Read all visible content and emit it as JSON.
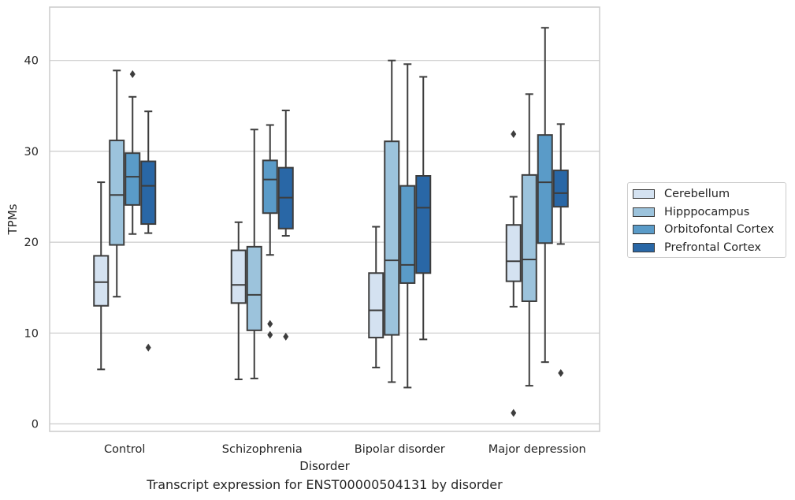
{
  "chart_data": {
    "type": "box",
    "caption": "Transcript expression for ENST00000504131 by disorder",
    "xlabel": "Disorder",
    "ylabel": "TPMs",
    "ylim": [
      -0.8,
      46
    ],
    "yticks": [
      0,
      10,
      20,
      30,
      40
    ],
    "grid": "horizontal",
    "legend_position": "right",
    "categories": [
      "Control",
      "Schizophrenia",
      "Bipolar disorder",
      "Major depression"
    ],
    "series": [
      {
        "name": "Cerebellum",
        "color": "#d4e2f1",
        "boxes": [
          {
            "whisker_low": 6.0,
            "q1": 13.0,
            "median": 15.6,
            "q3": 18.5,
            "whisker_high": 26.6,
            "outliers": []
          },
          {
            "whisker_low": 4.9,
            "q1": 13.3,
            "median": 15.3,
            "q3": 19.1,
            "whisker_high": 22.2,
            "outliers": []
          },
          {
            "whisker_low": 6.2,
            "q1": 9.5,
            "median": 12.5,
            "q3": 16.6,
            "whisker_high": 21.7,
            "outliers": []
          },
          {
            "whisker_low": 12.9,
            "q1": 15.7,
            "median": 17.9,
            "q3": 21.9,
            "whisker_high": 25.0,
            "outliers": [
              31.9,
              1.2
            ]
          }
        ]
      },
      {
        "name": "Hipppocampus",
        "color": "#9cc3dc",
        "boxes": [
          {
            "whisker_low": 14.0,
            "q1": 19.7,
            "median": 25.2,
            "q3": 31.2,
            "whisker_high": 38.9,
            "outliers": []
          },
          {
            "whisker_low": 5.0,
            "q1": 10.3,
            "median": 14.2,
            "q3": 19.5,
            "whisker_high": 32.4,
            "outliers": []
          },
          {
            "whisker_low": 4.6,
            "q1": 9.8,
            "median": 18.0,
            "q3": 31.1,
            "whisker_high": 40.0,
            "outliers": []
          },
          {
            "whisker_low": 4.2,
            "q1": 13.5,
            "median": 18.1,
            "q3": 27.4,
            "whisker_high": 36.3,
            "outliers": []
          }
        ]
      },
      {
        "name": "Orbitofontal Cortex",
        "color": "#5a9bc8",
        "boxes": [
          {
            "whisker_low": 20.9,
            "q1": 24.1,
            "median": 27.2,
            "q3": 29.8,
            "whisker_high": 36.0,
            "outliers": [
              38.5
            ]
          },
          {
            "whisker_low": 18.6,
            "q1": 23.2,
            "median": 26.9,
            "q3": 29.0,
            "whisker_high": 32.9,
            "outliers": [
              11.0,
              9.8
            ]
          },
          {
            "whisker_low": 4.0,
            "q1": 15.5,
            "median": 17.5,
            "q3": 26.2,
            "whisker_high": 39.6,
            "outliers": []
          },
          {
            "whisker_low": 6.8,
            "q1": 19.9,
            "median": 26.6,
            "q3": 31.8,
            "whisker_high": 43.6,
            "outliers": []
          }
        ]
      },
      {
        "name": "Prefrontal Cortex",
        "color": "#2967a6",
        "boxes": [
          {
            "whisker_low": 21.0,
            "q1": 22.0,
            "median": 26.2,
            "q3": 28.9,
            "whisker_high": 34.4,
            "outliers": [
              8.4
            ]
          },
          {
            "whisker_low": 20.7,
            "q1": 21.5,
            "median": 24.9,
            "q3": 28.2,
            "whisker_high": 34.5,
            "outliers": [
              9.6
            ]
          },
          {
            "whisker_low": 9.3,
            "q1": 16.6,
            "median": 23.8,
            "q3": 27.3,
            "whisker_high": 38.2,
            "outliers": []
          },
          {
            "whisker_low": 19.8,
            "q1": 23.9,
            "median": 25.4,
            "q3": 27.9,
            "whisker_high": 33.0,
            "outliers": [
              5.6
            ]
          }
        ]
      }
    ]
  }
}
